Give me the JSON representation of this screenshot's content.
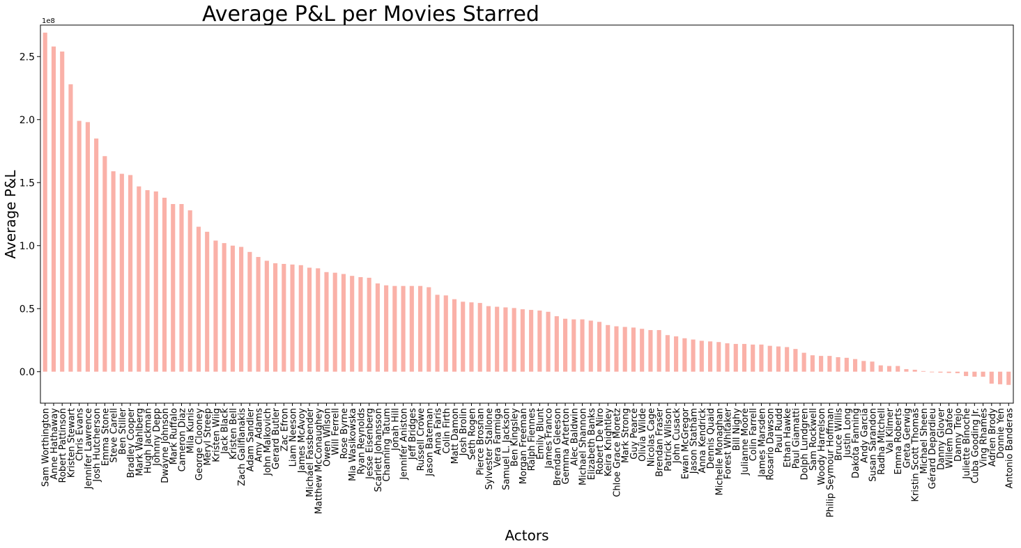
{
  "chart_data": {
    "type": "bar",
    "title": "Average P&L per Movies Starred",
    "xlabel": "Actors",
    "ylabel": "Average P&L",
    "scale_note": "1e8",
    "ylim": [
      -0.25,
      2.75
    ],
    "yticks": [
      0.0,
      0.5,
      1.0,
      1.5,
      2.0,
      2.5
    ],
    "ytick_labels": [
      "0.0",
      "0.5",
      "1.0",
      "1.5",
      "2.0",
      "2.5"
    ],
    "grid": false,
    "bar_color": "#fab1a8",
    "categories": [
      "Sam Worthington",
      "Anne Hathaway",
      "Robert Pattinson",
      "Kristen Stewart",
      "Chris Evans",
      "Jennifer Lawrence",
      "Josh Hutcherson",
      "Emma Stone",
      "Steve Carell",
      "Ben Stiller",
      "Bradley Cooper",
      "Mark Wahlberg",
      "Hugh Jackman",
      "Johnny Depp",
      "Dwayne Johnson",
      "Mark Ruffalo",
      "Cameron Diaz",
      "Mila Kunis",
      "George Clooney",
      "Meryl Streep",
      "Kristen Wiig",
      "Jack Black",
      "Kristen Bell",
      "Zach Galifianakis",
      "Adam Sandler",
      "Amy Adams",
      "John Malkovich",
      "Gerard Butler",
      "Zac Efron",
      "Liam Neeson",
      "James McAvoy",
      "Michael Fassbender",
      "Matthew McConaughey",
      "Owen Wilson",
      "Will Ferrell",
      "Rose Byrne",
      "Mia Wasikowska",
      "Ryan Reynolds",
      "Jesse Eisenberg",
      "Scarlett Johansson",
      "Channing Tatum",
      "Jonah Hill",
      "Jennifer Aniston",
      "Jeff Bridges",
      "Russell Crowe",
      "Jason Bateman",
      "Anna Faris",
      "Colin Firth",
      "Matt Damon",
      "Josh Brolin",
      "Seth Rogen",
      "Pierce Brosnan",
      "Sylvester Stallone",
      "Vera Farmiga",
      "Samuel L. Jackson",
      "Ben Kingsley",
      "Morgan Freeman",
      "Ralph Fiennes",
      "Emily Blunt",
      "James Franco",
      "Brendan Gleeson",
      "Gemma Arterton",
      "Alec Baldwin",
      "Michael Shannon",
      "Elizabeth Banks",
      "Robert De Niro",
      "Keira Knightley",
      "Chloe Grace Moretz",
      "Mark Strong",
      "Guy Pearce",
      "Olivia Wilde",
      "Nicolas Cage",
      "Brendan Fraser",
      "Patrick Wilson",
      "John Cusack",
      "Ewan McGregor",
      "Jason Statham",
      "Anna Kendrick",
      "Dennis Quaid",
      "Michelle Monaghan",
      "Forest Whitaker",
      "Bill Nighy",
      "Julianne Moore",
      "Colin Farrell",
      "James Marsden",
      "Rosario Dawson",
      "Paul Rudd",
      "Ethan Hawke",
      "Paul Giamatti",
      "Dolph Lundgren",
      "Sam Rockwell",
      "Woody Harrelson",
      "Philip Seymour Hoffman",
      "Bruce Willis",
      "Justin Long",
      "Dakota Fanning",
      "Andy Garcia",
      "Susan Sarandon",
      "Radha Mitchell",
      "Val Kilmer",
      "Emma Roberts",
      "Greta Gerwig",
      "Kristin Scott Thomas",
      "Michael Sheen",
      "Gérard Depardieu",
      "Danny Glover",
      "Willem Dafoe",
      "Danny Trejo",
      "Juliette Binoche",
      "Cuba Gooding Jr.",
      "Ving Rhames",
      "Adrien Brody",
      "Donnie Yen",
      "Antonio Banderas"
    ],
    "values": [
      2.69,
      2.58,
      2.54,
      2.28,
      1.99,
      1.98,
      1.85,
      1.71,
      1.59,
      1.57,
      1.56,
      1.47,
      1.44,
      1.43,
      1.38,
      1.33,
      1.33,
      1.28,
      1.15,
      1.11,
      1.04,
      1.02,
      1.0,
      0.99,
      0.95,
      0.91,
      0.88,
      0.86,
      0.855,
      0.85,
      0.845,
      0.825,
      0.82,
      0.79,
      0.785,
      0.775,
      0.76,
      0.75,
      0.745,
      0.7,
      0.685,
      0.68,
      0.68,
      0.68,
      0.68,
      0.67,
      0.61,
      0.605,
      0.575,
      0.555,
      0.55,
      0.545,
      0.52,
      0.515,
      0.51,
      0.505,
      0.495,
      0.49,
      0.485,
      0.475,
      0.44,
      0.42,
      0.415,
      0.415,
      0.405,
      0.395,
      0.37,
      0.36,
      0.355,
      0.35,
      0.34,
      0.33,
      0.33,
      0.29,
      0.28,
      0.265,
      0.255,
      0.245,
      0.24,
      0.235,
      0.225,
      0.22,
      0.22,
      0.215,
      0.215,
      0.205,
      0.2,
      0.195,
      0.18,
      0.15,
      0.13,
      0.125,
      0.125,
      0.115,
      0.11,
      0.1,
      0.085,
      0.08,
      0.05,
      0.045,
      0.045,
      0.02,
      0.015,
      0.005,
      -0.005,
      -0.008,
      -0.01,
      -0.012,
      -0.035,
      -0.04,
      -0.04,
      -0.095,
      -0.1,
      -0.105
    ]
  }
}
